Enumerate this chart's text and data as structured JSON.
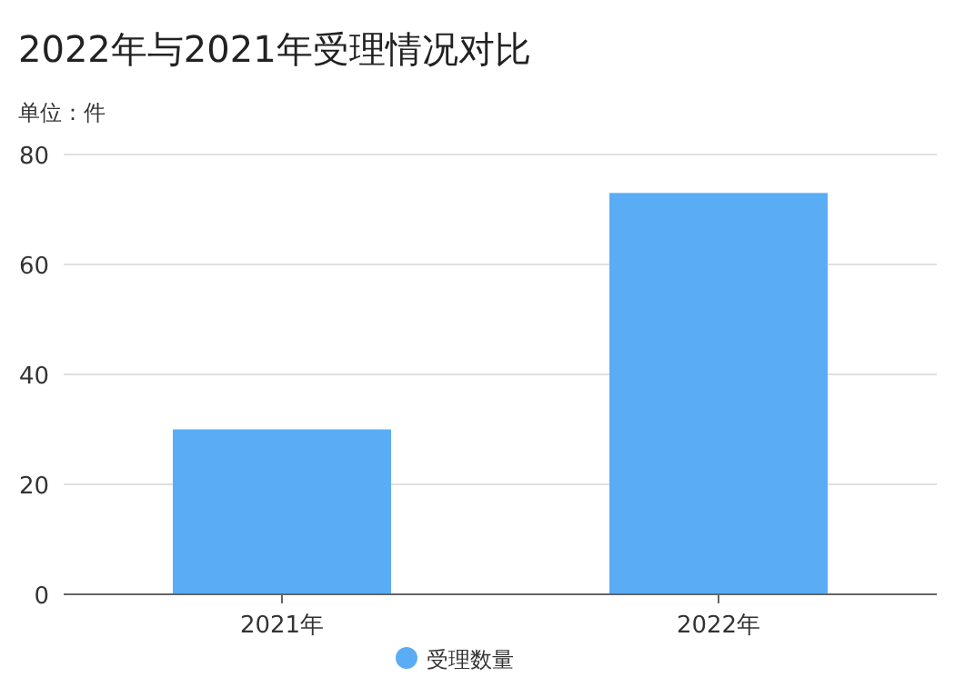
{
  "chart_data": {
    "type": "bar",
    "title": "2022年与2021年受理情况对比",
    "subtitle": "单位：件",
    "categories": [
      "2021年",
      "2022年"
    ],
    "series": [
      {
        "name": "受理数量",
        "color": "#5aadf5",
        "values": [
          30,
          73
        ]
      }
    ],
    "ylim": [
      0,
      80
    ],
    "yticks": [
      0,
      20,
      40,
      60,
      80
    ],
    "grid": "y",
    "legend": "bottom"
  }
}
